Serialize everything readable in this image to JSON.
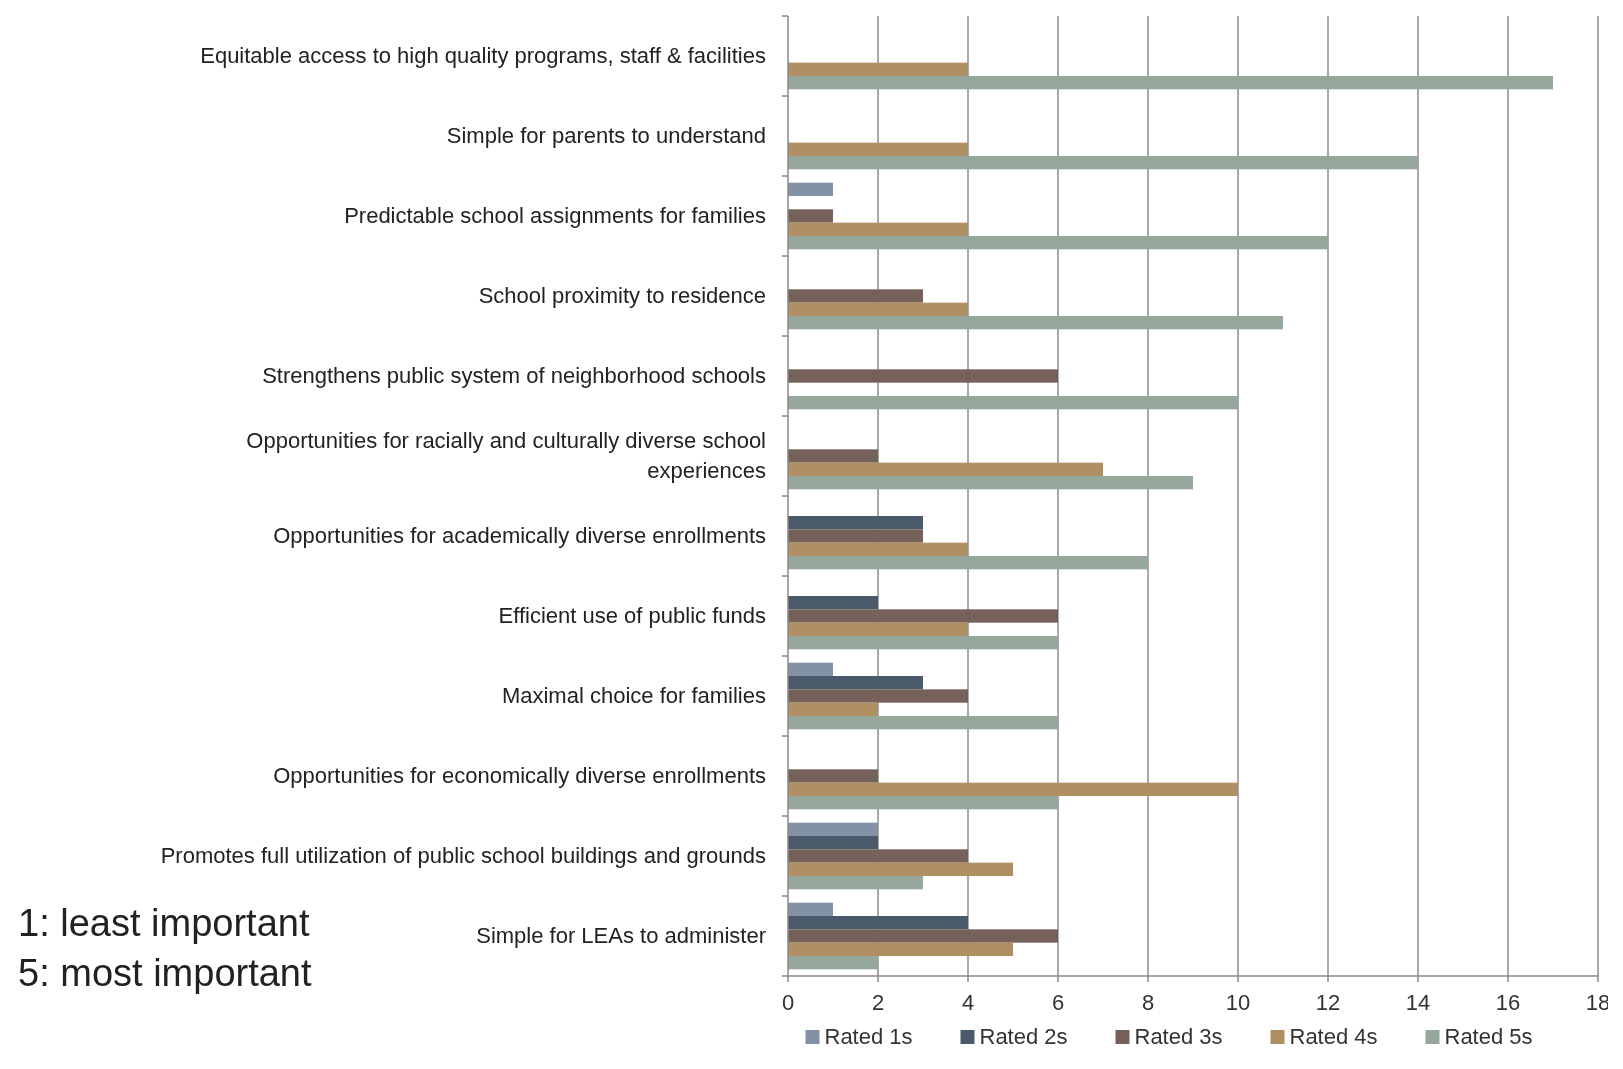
{
  "chart_data": {
    "type": "bar",
    "orientation": "horizontal",
    "categories": [
      "Equitable access to high quality programs, staff & facilities",
      "Simple for parents to understand",
      "Predictable school assignments for families",
      "School proximity to residence",
      "Strengthens public system of neighborhood schools",
      "Opportunities for racially and culturally diverse school experiences",
      "Opportunities for academically diverse enrollments",
      "Efficient use of public funds",
      "Maximal choice for families",
      "Opportunities for economically diverse enrollments",
      "Promotes full utilization of public school buildings and grounds",
      "Simple for LEAs to administer"
    ],
    "series": [
      {
        "name": "Rated 1s",
        "color": "#8391a6",
        "values": [
          null,
          null,
          1,
          null,
          null,
          null,
          null,
          null,
          1,
          null,
          2,
          1
        ]
      },
      {
        "name": "Rated 2s",
        "color": "#4b5a6a",
        "values": [
          null,
          null,
          null,
          null,
          null,
          null,
          3,
          2,
          3,
          null,
          2,
          4
        ]
      },
      {
        "name": "Rated 3s",
        "color": "#76615a",
        "values": [
          null,
          null,
          1,
          3,
          6,
          2,
          3,
          6,
          4,
          2,
          4,
          6
        ]
      },
      {
        "name": "Rated 4s",
        "color": "#b08f62",
        "values": [
          4,
          4,
          4,
          4,
          null,
          7,
          4,
          4,
          2,
          10,
          5,
          5
        ]
      },
      {
        "name": "Rated 5s",
        "color": "#95a89b",
        "values": [
          17,
          14,
          12,
          11,
          10,
          9,
          8,
          6,
          6,
          6,
          3,
          2
        ]
      }
    ],
    "xlim": [
      0,
      18
    ],
    "xticks": [
      0,
      2,
      4,
      6,
      8,
      10,
      12,
      14,
      16,
      18
    ],
    "grid": "x",
    "legend": "bottom",
    "annotations": [
      "1: least important",
      "5: most important"
    ]
  }
}
